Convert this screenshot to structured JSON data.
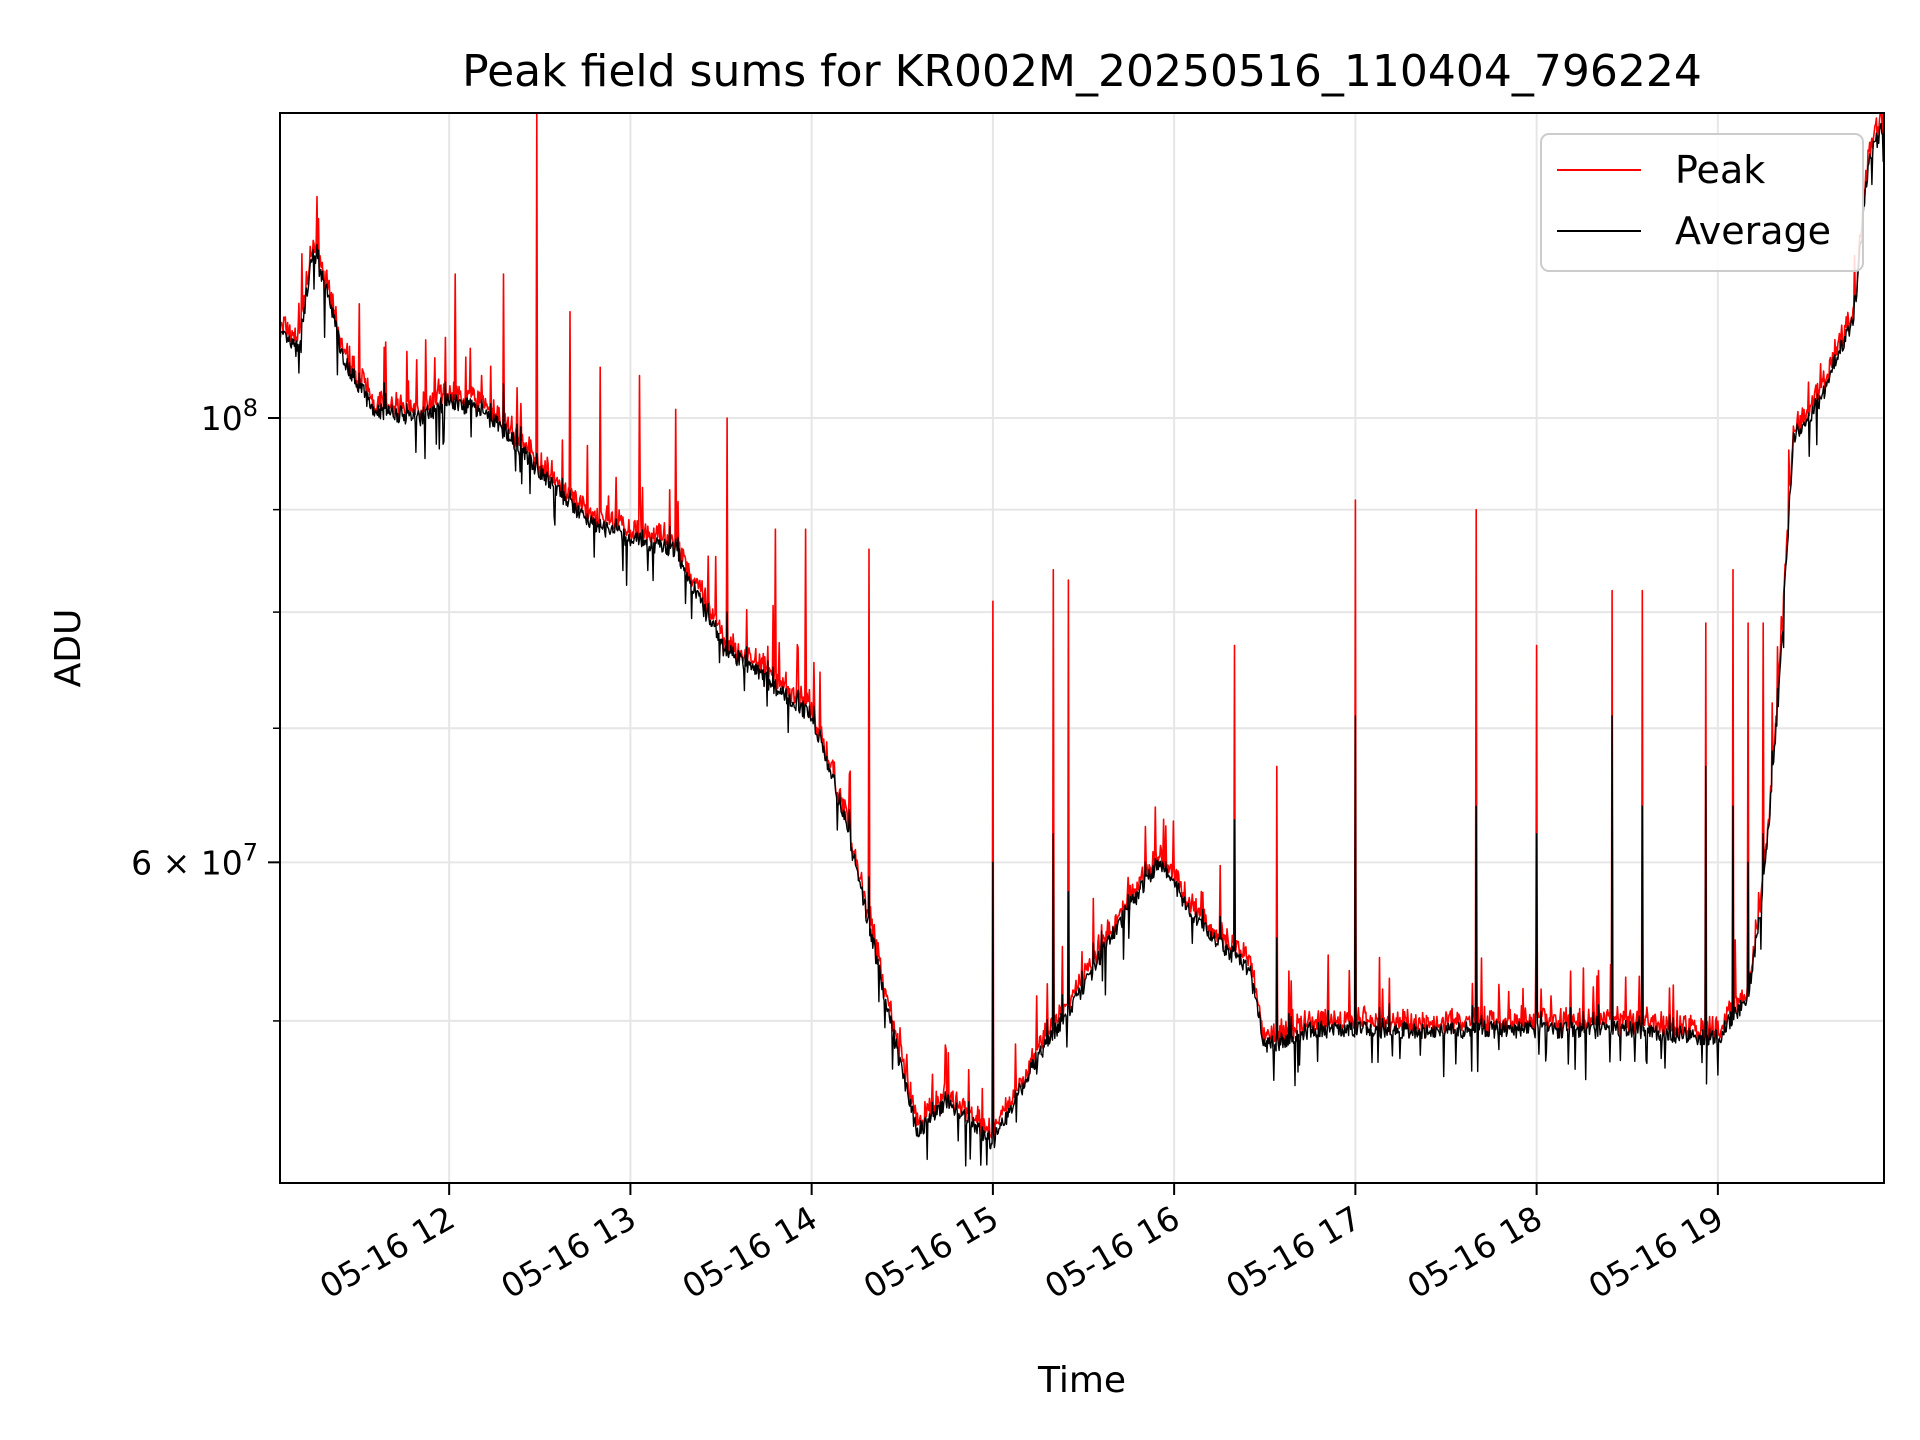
{
  "chart_data": {
    "type": "line",
    "title": "Peak field sums for KR002M_20250516_110404_796224",
    "xlabel": "Time",
    "ylabel": "ADU",
    "y_scale": "log",
    "ylim": [
      41500000,
      142000000
    ],
    "xlim": [
      "05-16 11:04",
      "05-16 19:55"
    ],
    "x_ticks": [
      "05-16 12",
      "05-16 13",
      "05-16 14",
      "05-16 15",
      "05-16 16",
      "05-16 17",
      "05-16 18",
      "05-16 19"
    ],
    "y_tick_labels": [
      {
        "value": 100000000,
        "mantissa": "10",
        "exponent": "8"
      },
      {
        "value": 60000000,
        "mantissa": "6 × 10",
        "exponent": "7"
      }
    ],
    "y_minor_ticks": [
      50000000,
      70000000,
      80000000,
      90000000
    ],
    "grid": true,
    "legend_position": "top-right",
    "series": [
      {
        "name": "Peak",
        "color": "#ff0000"
      },
      {
        "name": "Average",
        "color": "#000000"
      }
    ],
    "baseline": {
      "x": [
        "05-16 11:04",
        "05-16 11:10",
        "05-16 11:15",
        "05-16 11:20",
        "05-16 11:25",
        "05-16 11:35",
        "05-16 11:50",
        "05-16 12:00",
        "05-16 12:10",
        "05-16 12:20",
        "05-16 12:30",
        "05-16 12:45",
        "05-16 13:00",
        "05-16 13:15",
        "05-16 13:30",
        "05-16 13:45",
        "05-16 14:00",
        "05-16 14:10",
        "05-16 14:20",
        "05-16 14:30",
        "05-16 14:35",
        "05-16 14:45",
        "05-16 15:00",
        "05-16 15:15",
        "05-16 15:30",
        "05-16 15:45",
        "05-16 15:55",
        "05-16 16:10",
        "05-16 16:25",
        "05-16 16:30",
        "05-16 16:45",
        "05-16 17:00",
        "05-16 17:30",
        "05-16 18:00",
        "05-16 18:30",
        "05-16 19:00",
        "05-16 19:10",
        "05-16 19:15",
        "05-16 19:20",
        "05-16 19:25",
        "05-16 19:30",
        "05-16 19:35",
        "05-16 19:40",
        "05-16 19:45",
        "05-16 19:50",
        "05-16 19:55"
      ],
      "y": [
        110000000,
        108000000,
        121000000,
        115000000,
        107000000,
        101000000,
        100000000,
        102000000,
        101000000,
        98000000,
        94000000,
        89000000,
        87000000,
        86000000,
        77000000,
        74000000,
        71000000,
        64000000,
        55000000,
        47000000,
        44000000,
        45500000,
        43500000,
        48000000,
        52000000,
        57000000,
        60000000,
        55500000,
        53000000,
        48500000,
        49500000,
        49500000,
        49500000,
        49500000,
        49500000,
        49000000,
        51500000,
        58000000,
        72000000,
        98000000,
        100000000,
        103000000,
        108000000,
        112000000,
        135000000,
        140000000
      ]
    },
    "spikes": [
      {
        "x": "05-16 12:29",
        "peak": 142000000,
        "average": 96000000
      },
      {
        "x": "05-16 12:18",
        "peak": 118000000,
        "average": 104000000
      },
      {
        "x": "05-16 12:02",
        "peak": 118000000,
        "average": 101000000
      },
      {
        "x": "05-16 12:40",
        "peak": 113000000,
        "average": 92000000
      },
      {
        "x": "05-16 12:50",
        "peak": 106000000,
        "average": 89000000
      },
      {
        "x": "05-16 13:03",
        "peak": 105000000,
        "average": 87000000
      },
      {
        "x": "05-16 13:15",
        "peak": 101000000,
        "average": 87000000
      },
      {
        "x": "05-16 13:32",
        "peak": 100000000,
        "average": 80000000
      },
      {
        "x": "05-16 13:48",
        "peak": 88000000,
        "average": 74000000
      },
      {
        "x": "05-16 13:58",
        "peak": 88000000,
        "average": 72000000
      },
      {
        "x": "05-16 14:19",
        "peak": 86000000,
        "average": 59000000
      },
      {
        "x": "05-16 15:00",
        "peak": 81000000,
        "average": 60000000
      },
      {
        "x": "05-16 15:20",
        "peak": 84000000,
        "average": 62000000
      },
      {
        "x": "05-16 15:25",
        "peak": 83000000,
        "average": 58000000
      },
      {
        "x": "05-16 16:20",
        "peak": 77000000,
        "average": 63000000
      },
      {
        "x": "05-16 16:34",
        "peak": 67000000,
        "average": 55000000
      },
      {
        "x": "05-16 17:00",
        "peak": 91000000,
        "average": 71000000
      },
      {
        "x": "05-16 17:40",
        "peak": 90000000,
        "average": 64000000
      },
      {
        "x": "05-16 18:00",
        "peak": 77000000,
        "average": 62000000
      },
      {
        "x": "05-16 18:25",
        "peak": 82000000,
        "average": 71000000
      },
      {
        "x": "05-16 18:35",
        "peak": 82000000,
        "average": 64000000
      },
      {
        "x": "05-16 18:56",
        "peak": 79000000,
        "average": 67000000
      },
      {
        "x": "05-16 19:05",
        "peak": 84000000,
        "average": 64000000
      },
      {
        "x": "05-16 19:10",
        "peak": 79000000,
        "average": 60000000
      },
      {
        "x": "05-16 19:15",
        "peak": 79000000,
        "average": 62000000
      }
    ]
  }
}
